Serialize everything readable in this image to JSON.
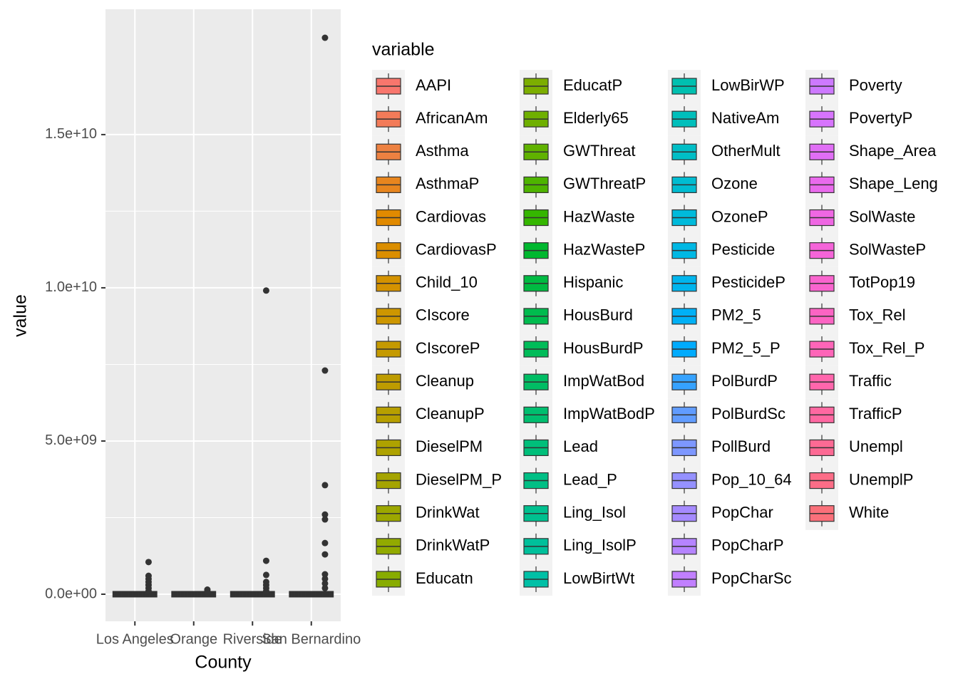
{
  "chart_data": {
    "type": "boxplot",
    "x_label": "County",
    "y_label": "value",
    "legend_title": "variable",
    "categories": [
      "Los Angeles",
      "Orange",
      "Riverside",
      "San Bernardino"
    ],
    "ylim": [
      -884000000,
      19090000000
    ],
    "yticks": [
      {
        "value": 0,
        "label": "0.0e+00"
      },
      {
        "value": 5000000000,
        "label": "5.0e+09"
      },
      {
        "value": 10000000000,
        "label": "1.0e+10"
      },
      {
        "value": 15000000000,
        "label": "1.5e+10"
      }
    ],
    "grid": true,
    "outliers": [
      [
        1050000000,
        600000000,
        500000000,
        400000000,
        300000000,
        200000000,
        100000000
      ],
      [
        150000000,
        100000000,
        50000000
      ],
      [
        9910000000,
        1090000000,
        630000000,
        400000000,
        300000000,
        200000000,
        100000000
      ],
      [
        18160000000,
        7300000000,
        3560000000,
        2600000000,
        2440000000,
        1670000000,
        1300000000,
        650000000,
        500000000,
        350000000,
        200000000
      ]
    ],
    "outlier_color": "#333333",
    "series": [
      {
        "name": "AAPI",
        "color": "#F8766D"
      },
      {
        "name": "AfricanAm",
        "color": "#F37B59"
      },
      {
        "name": "Asthma",
        "color": "#ED8141"
      },
      {
        "name": "AsthmaP",
        "color": "#E7851E"
      },
      {
        "name": "Cardiovas",
        "color": "#E18A00"
      },
      {
        "name": "CardiovasP",
        "color": "#DB8E00"
      },
      {
        "name": "Child_10",
        "color": "#D49200"
      },
      {
        "name": "CIscore",
        "color": "#CD9600"
      },
      {
        "name": "CIscoreP",
        "color": "#C59A00"
      },
      {
        "name": "Cleanup",
        "color": "#BE9C00"
      },
      {
        "name": "CleanupP",
        "color": "#B79F00"
      },
      {
        "name": "DieselPM",
        "color": "#AEA200"
      },
      {
        "name": "DieselPM_P",
        "color": "#A5A400"
      },
      {
        "name": "DrinkWat",
        "color": "#9CA700"
      },
      {
        "name": "DrinkWatP",
        "color": "#92AA00"
      },
      {
        "name": "Educatn",
        "color": "#88AC00"
      },
      {
        "name": "EducatP",
        "color": "#7CAE00"
      },
      {
        "name": "Elderly65",
        "color": "#6FB000"
      },
      {
        "name": "GWThreat",
        "color": "#60B200"
      },
      {
        "name": "GWThreatP",
        "color": "#4EB400"
      },
      {
        "name": "HazWaste",
        "color": "#35B600"
      },
      {
        "name": "HazWasteP",
        "color": "#00B82F"
      },
      {
        "name": "Hispanic",
        "color": "#00BA42"
      },
      {
        "name": "HousBurd",
        "color": "#00BB4E"
      },
      {
        "name": "HousBurdP",
        "color": "#00BC59"
      },
      {
        "name": "ImpWatBod",
        "color": "#00BD64"
      },
      {
        "name": "ImpWatBodP",
        "color": "#00BE6F"
      },
      {
        "name": "Lead",
        "color": "#00BF7A"
      },
      {
        "name": "Lead_P",
        "color": "#00BF85"
      },
      {
        "name": "Ling_Isol",
        "color": "#00C08F"
      },
      {
        "name": "Ling_IsolP",
        "color": "#00C09B"
      },
      {
        "name": "LowBirtWt",
        "color": "#00C0A6"
      },
      {
        "name": "LowBirWP",
        "color": "#00C0B0"
      },
      {
        "name": "NativeAm",
        "color": "#00BFBB"
      },
      {
        "name": "OtherMult",
        "color": "#00BEC6"
      },
      {
        "name": "Ozone",
        "color": "#00BCD1"
      },
      {
        "name": "OzoneP",
        "color": "#00BADB"
      },
      {
        "name": "Pesticide",
        "color": "#00B8E4"
      },
      {
        "name": "PesticideP",
        "color": "#00B5ED"
      },
      {
        "name": "PM2_5",
        "color": "#00B0F6"
      },
      {
        "name": "PM2_5_P",
        "color": "#00ABFD"
      },
      {
        "name": "PolBurdP",
        "color": "#35A2FF"
      },
      {
        "name": "PolBurdSc",
        "color": "#619CFF"
      },
      {
        "name": "PollBurd",
        "color": "#7D97FF"
      },
      {
        "name": "Pop_10_64",
        "color": "#9591FF"
      },
      {
        "name": "PopChar",
        "color": "#A58AFF"
      },
      {
        "name": "PopCharP",
        "color": "#B584FF"
      },
      {
        "name": "PopCharSc",
        "color": "#C17FFF"
      },
      {
        "name": "Poverty",
        "color": "#CD79FF"
      },
      {
        "name": "PovertyP",
        "color": "#D774FD"
      },
      {
        "name": "Shape_Area",
        "color": "#E06EF5"
      },
      {
        "name": "Shape_Leng",
        "color": "#E96AEC"
      },
      {
        "name": "SolWaste",
        "color": "#EF67E3"
      },
      {
        "name": "SolWasteP",
        "color": "#F564D9"
      },
      {
        "name": "TotPop19",
        "color": "#F964CE"
      },
      {
        "name": "Tox_Rel",
        "color": "#FC64C3"
      },
      {
        "name": "Tox_Rel_P",
        "color": "#FE65B8"
      },
      {
        "name": "Traffic",
        "color": "#FF66AC"
      },
      {
        "name": "TrafficP",
        "color": "#FF68A1"
      },
      {
        "name": "Unempl",
        "color": "#FD6A94"
      },
      {
        "name": "UnemplP",
        "color": "#FC6D87"
      },
      {
        "name": "White",
        "color": "#FA707A"
      }
    ]
  }
}
